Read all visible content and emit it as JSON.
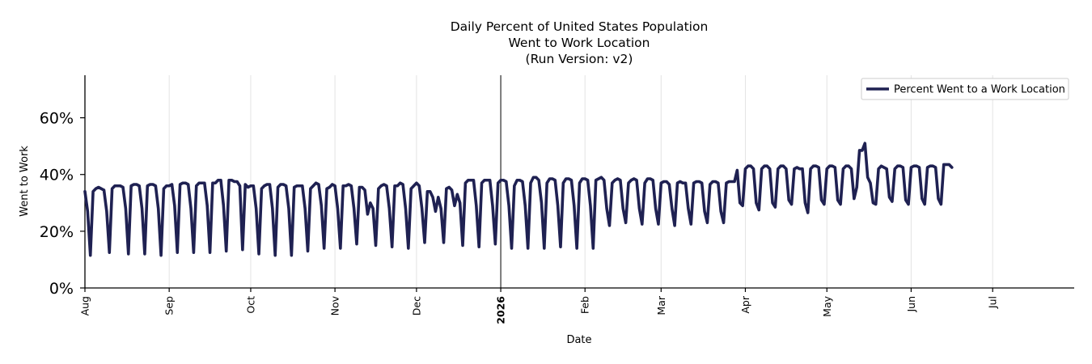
{
  "chart_data": {
    "type": "line",
    "title": [
      "Daily Percent of United States Population",
      "Went to Work Location",
      "(Run Version: v2)"
    ],
    "xlabel": "Date",
    "ylabel": "Went to Work",
    "y_tick_labels": [
      "0%",
      "20%",
      "40%",
      "60%"
    ],
    "y_ticks": [
      0,
      20,
      40,
      60
    ],
    "ylim": [
      0,
      75
    ],
    "x_range": [
      "2025-08-01",
      "2026-07-31"
    ],
    "x_tick_labels": [
      {
        "date": "2025-08-01",
        "label": "Aug",
        "bold": false
      },
      {
        "date": "2025-09-01",
        "label": "Sep",
        "bold": false
      },
      {
        "date": "2025-10-01",
        "label": "Oct",
        "bold": false
      },
      {
        "date": "2025-11-01",
        "label": "Nov",
        "bold": false
      },
      {
        "date": "2025-12-01",
        "label": "Dec",
        "bold": false
      },
      {
        "date": "2026-01-01",
        "label": "2026",
        "bold": true
      },
      {
        "date": "2026-02-01",
        "label": "Feb",
        "bold": false
      },
      {
        "date": "2026-03-01",
        "label": "Mar",
        "bold": false
      },
      {
        "date": "2026-04-01",
        "label": "Apr",
        "bold": false
      },
      {
        "date": "2026-05-01",
        "label": "May",
        "bold": false
      },
      {
        "date": "2026-06-01",
        "label": "Jun",
        "bold": false
      },
      {
        "date": "2026-07-01",
        "label": "Jul",
        "bold": false
      }
    ],
    "grid": "vertical, light",
    "legend_position": "top-right",
    "year_divider": "2026-01-01",
    "series": [
      {
        "name": "Percent Went to a Work Location",
        "color": "#1f2152",
        "start_date": "2025-08-01",
        "values": [
          34,
          27,
          11.5,
          34,
          35,
          35.5,
          35,
          34.5,
          27,
          12.5,
          35,
          36,
          36,
          36,
          35.5,
          28,
          12,
          36,
          36.5,
          36.5,
          36,
          28,
          12,
          36,
          36.5,
          36.5,
          36,
          28,
          11.5,
          35,
          36,
          36,
          36.5,
          29,
          12.5,
          36.5,
          37,
          37,
          36.5,
          28,
          12.5,
          36,
          37,
          37,
          37,
          29,
          12.5,
          37,
          37,
          38,
          38,
          29,
          13,
          38,
          38,
          37.5,
          37.5,
          36,
          13.5,
          36.5,
          35.5,
          36,
          36,
          28,
          12,
          35,
          36,
          36.5,
          36.5,
          28,
          11.5,
          35.5,
          36.5,
          36.5,
          36,
          28,
          11.5,
          35.5,
          36,
          36,
          36,
          28,
          13,
          35,
          36,
          37,
          36.5,
          29,
          14,
          35,
          35.5,
          36.5,
          36,
          28,
          14,
          36,
          36,
          36.5,
          36,
          28,
          15.5,
          35.5,
          35.5,
          34.5,
          26,
          30,
          28,
          15,
          35,
          36,
          36.5,
          36,
          28,
          14.5,
          36,
          36,
          37,
          36.5,
          28,
          14,
          35,
          36,
          37,
          36,
          28,
          16,
          34,
          34,
          32,
          27,
          32,
          28,
          16,
          35,
          35.5,
          34.5,
          29,
          33,
          30,
          15,
          37,
          38,
          38,
          38,
          29,
          14.5,
          37,
          38,
          38,
          38,
          29,
          15.5,
          37,
          38,
          38,
          37.5,
          29,
          14,
          36,
          38,
          38,
          37.5,
          29,
          14,
          37,
          39,
          39,
          38,
          30,
          14,
          37,
          38.5,
          38.5,
          38,
          29,
          14.5,
          37,
          38.5,
          38.5,
          38,
          29,
          14,
          37,
          38.5,
          38.5,
          38,
          29,
          14,
          38,
          38.5,
          39,
          38,
          28,
          22,
          37,
          38,
          38.5,
          38,
          28,
          23,
          37,
          38,
          38.5,
          38,
          28,
          22.5,
          37,
          38.5,
          38.5,
          38,
          28,
          22.5,
          37,
          37.5,
          37.5,
          36.5,
          28,
          22,
          37,
          37.5,
          37,
          37,
          28,
          22.5,
          37,
          37.5,
          37.5,
          37,
          27,
          23,
          36.5,
          37.5,
          37.5,
          37,
          27,
          23,
          37,
          37.5,
          37.5,
          37.5,
          41.5,
          30,
          29,
          42,
          43,
          43,
          42,
          30,
          27.5,
          42,
          43,
          43,
          42,
          30,
          28.5,
          42,
          43,
          43,
          42,
          31,
          29.5,
          42,
          42.5,
          42,
          42,
          30,
          26.5,
          42,
          43,
          43,
          42.5,
          31,
          29.5,
          42,
          43,
          43,
          42.5,
          31,
          29.5,
          42,
          43,
          43,
          42,
          31.5,
          35.5,
          48.5,
          48.5,
          51,
          39,
          37,
          30,
          29.5,
          42,
          43,
          42.5,
          42,
          32,
          30.5,
          42,
          43,
          43,
          42.5,
          31,
          29.5,
          42.5,
          43,
          43,
          42.5,
          31.5,
          29.5,
          42.5,
          43,
          43,
          42.5,
          31.5,
          29.5,
          43.5,
          43.5,
          43.5,
          42.5
        ]
      }
    ]
  }
}
